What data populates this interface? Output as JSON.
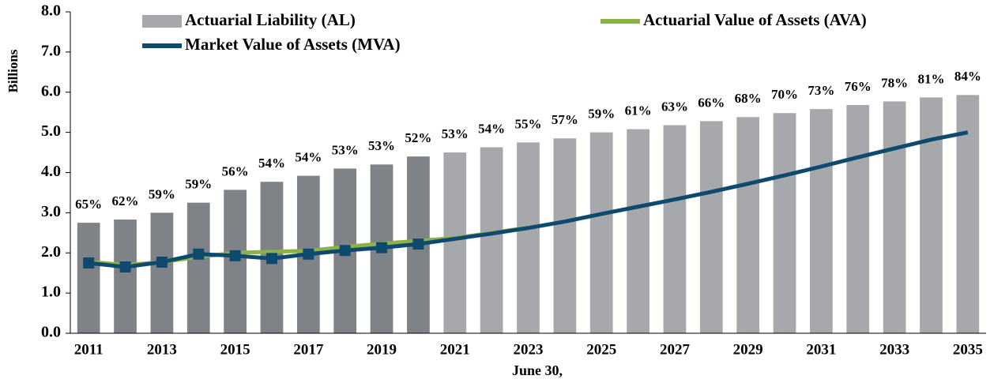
{
  "chart_data": {
    "type": "bar-line",
    "y_label": "Billions",
    "x_label": "June 30,",
    "categories": [
      "2011",
      null,
      "2013",
      null,
      "2015",
      null,
      "2017",
      null,
      "2019",
      null,
      "2021",
      null,
      "2023",
      null,
      "2025",
      null,
      "2027",
      null,
      "2029",
      null,
      "2031",
      null,
      "2033",
      null,
      "2035"
    ],
    "ylim": [
      0,
      8
    ],
    "yticks": [
      {
        "value": 0,
        "label": "0.0"
      },
      {
        "value": 1,
        "label": "1.0"
      },
      {
        "value": 2,
        "label": "2.0"
      },
      {
        "value": 3,
        "label": "3.0"
      },
      {
        "value": 4,
        "label": "4.0"
      },
      {
        "value": 5,
        "label": "5.0"
      },
      {
        "value": 6,
        "label": "6.0"
      },
      {
        "value": 7,
        "label": "7.0"
      },
      {
        "value": 8,
        "label": "8.0"
      }
    ],
    "grid": false,
    "series": [
      {
        "name": "Actuarial Liability (AL)",
        "kind": "bar",
        "color": "#a6a8ab",
        "colors": [
          "#7f8387",
          "#7f8387",
          "#7f8387",
          "#7f8387",
          "#7f8387",
          "#7f8387",
          "#7f8387",
          "#7f8387",
          "#7f8387",
          "#7f8387",
          "#a6a8ab",
          "#a6a8ab",
          "#a6a8ab",
          "#a6a8ab",
          "#a6a8ab",
          "#a6a8ab",
          "#a6a8ab",
          "#a6a8ab",
          "#a6a8ab",
          "#a6a8ab",
          "#a6a8ab",
          "#a6a8ab",
          "#a6a8ab",
          "#a6a8ab",
          "#a6a8ab"
        ],
        "values": [
          2.75,
          2.83,
          3.0,
          3.25,
          3.57,
          3.77,
          3.92,
          4.1,
          4.2,
          4.4,
          4.5,
          4.63,
          4.75,
          4.85,
          5.0,
          5.08,
          5.18,
          5.28,
          5.38,
          5.48,
          5.58,
          5.68,
          5.77,
          5.87,
          5.93
        ]
      },
      {
        "name": "Actuarial Value of Assets (AVA)",
        "kind": "line",
        "color": "#8cb04a",
        "values": [
          1.78,
          1.7,
          1.77,
          1.9,
          2.0,
          2.03,
          2.05,
          2.15,
          2.23,
          2.3,
          2.37,
          2.5,
          2.63,
          null,
          null,
          null,
          null,
          null,
          null,
          null,
          null,
          null,
          null,
          null,
          null
        ]
      },
      {
        "name": "Market Value of Assets (MVA)",
        "kind": "line",
        "color": "#0e4a6e",
        "markers": true,
        "values": [
          1.75,
          1.65,
          1.77,
          1.97,
          1.93,
          1.86,
          1.97,
          2.06,
          2.13,
          2.22,
          2.35,
          2.48,
          2.62,
          2.78,
          2.97,
          3.15,
          3.33,
          3.52,
          3.72,
          3.93,
          4.15,
          4.38,
          4.6,
          4.82,
          5.0
        ]
      }
    ],
    "funded_ratio": {
      "values": [
        65,
        62,
        59,
        59,
        56,
        54,
        54,
        53,
        53,
        52,
        53,
        54,
        55,
        57,
        59,
        61,
        63,
        66,
        68,
        70,
        73,
        76,
        78,
        81,
        84
      ],
      "value_labels": [
        "65%",
        "62%",
        "59%",
        "59%",
        "56%",
        "54%",
        "54%",
        "53%",
        "53%",
        "52%",
        "53%",
        "54%",
        "55%",
        "57%",
        "59%",
        "61%",
        "63%",
        "66%",
        "68%",
        "70%",
        "73%",
        "76%",
        "78%",
        "81%",
        "84%"
      ]
    }
  }
}
